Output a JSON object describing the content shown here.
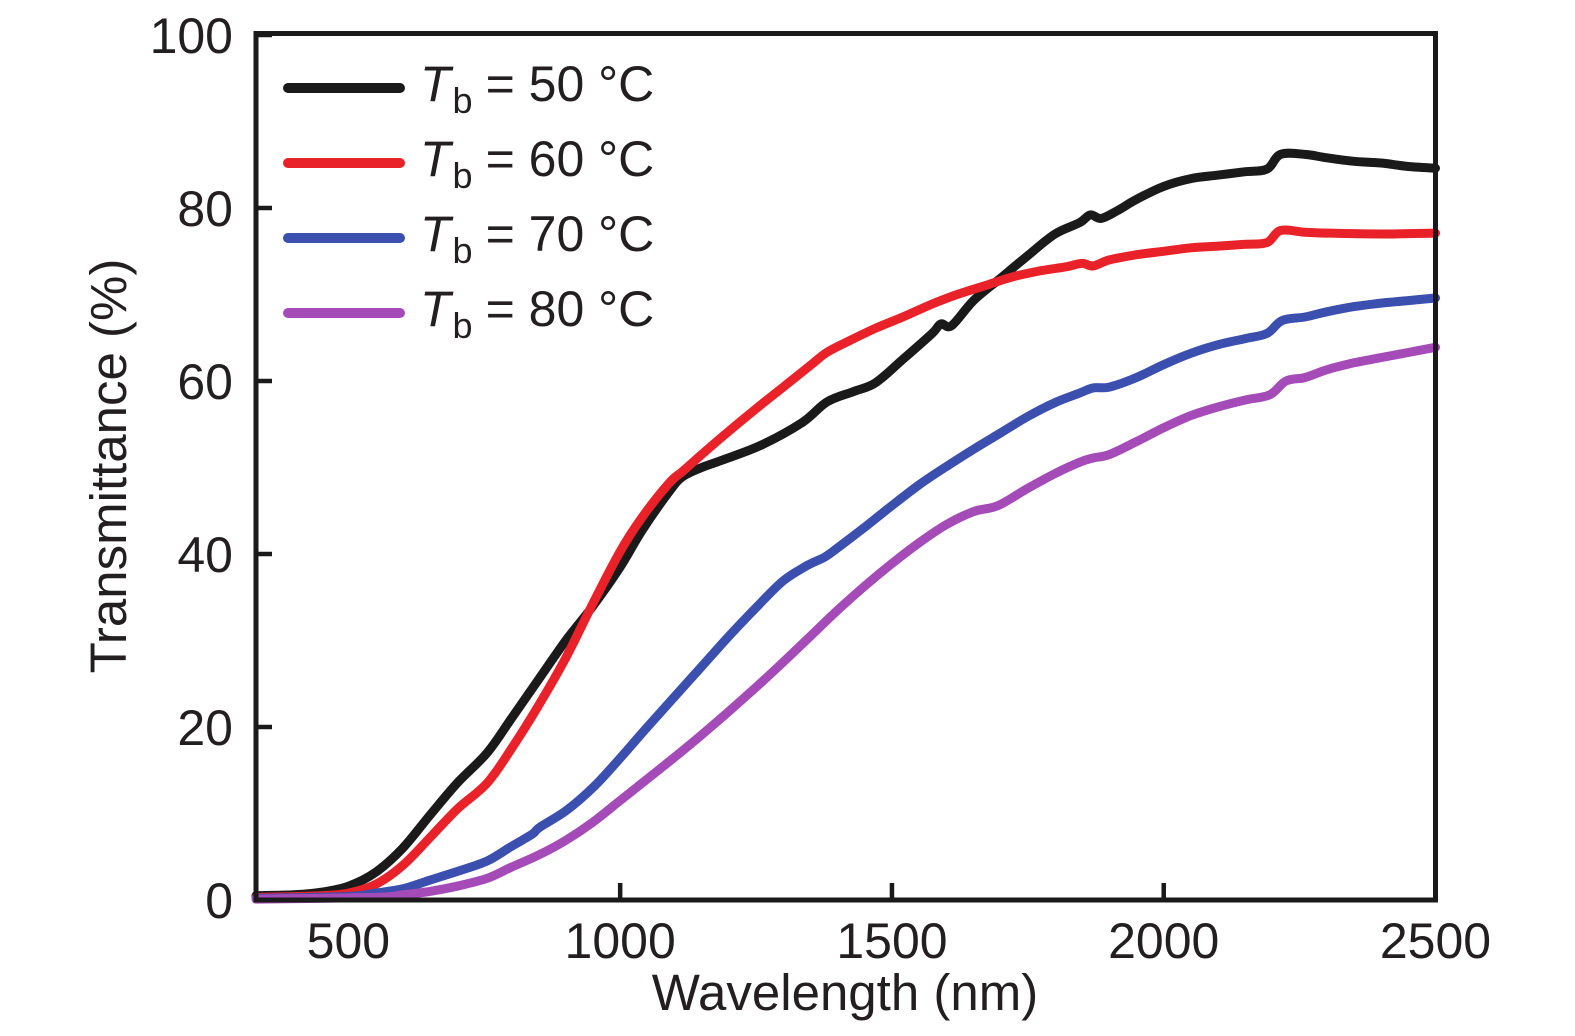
{
  "figure": {
    "background": "#ffffff",
    "text_color": "#231f20",
    "frame_color": "#1a1a1a"
  },
  "chart_data": {
    "type": "line",
    "title": "",
    "xlabel": "Wavelength (nm)",
    "ylabel": "Transmittance (%)",
    "xlim": [
      330,
      2500
    ],
    "ylim": [
      0,
      100
    ],
    "x_ticks": [
      500,
      1000,
      1500,
      2000,
      2500
    ],
    "y_ticks": [
      0,
      20,
      40,
      60,
      80,
      100
    ],
    "grid": false,
    "legend_position": "upper-left-inside",
    "series": [
      {
        "id": "tb50",
        "name": "Tb = 50 °C",
        "color": "#1a1a1a",
        "points": [
          [
            330,
            0.5
          ],
          [
            400,
            0.6
          ],
          [
            450,
            0.9
          ],
          [
            500,
            1.6
          ],
          [
            550,
            3.2
          ],
          [
            600,
            6
          ],
          [
            650,
            9.8
          ],
          [
            700,
            13.5
          ],
          [
            755,
            17
          ],
          [
            800,
            21
          ],
          [
            850,
            25.5
          ],
          [
            900,
            30
          ],
          [
            950,
            34
          ],
          [
            1000,
            38.5
          ],
          [
            1041,
            42.8
          ],
          [
            1090,
            47.2
          ],
          [
            1114,
            48.9
          ],
          [
            1150,
            50
          ],
          [
            1190,
            50.9
          ],
          [
            1260,
            52.6
          ],
          [
            1335,
            55.2
          ],
          [
            1381,
            57.6
          ],
          [
            1430,
            58.8
          ],
          [
            1470,
            59.8
          ],
          [
            1520,
            62.5
          ],
          [
            1574,
            65.5
          ],
          [
            1590,
            66.6
          ],
          [
            1610,
            66.4
          ],
          [
            1650,
            69.3
          ],
          [
            1700,
            71.9
          ],
          [
            1750,
            74.5
          ],
          [
            1800,
            77
          ],
          [
            1845,
            78.3
          ],
          [
            1865,
            79.2
          ],
          [
            1885,
            78.8
          ],
          [
            1915,
            79.7
          ],
          [
            1950,
            81
          ],
          [
            2000,
            82.5
          ],
          [
            2050,
            83.4
          ],
          [
            2100,
            83.8
          ],
          [
            2150,
            84.2
          ],
          [
            2190,
            84.5
          ],
          [
            2215,
            86.2
          ],
          [
            2260,
            86.2
          ],
          [
            2300,
            85.8
          ],
          [
            2350,
            85.4
          ],
          [
            2400,
            85.2
          ],
          [
            2450,
            84.8
          ],
          [
            2500,
            84.6
          ]
        ]
      },
      {
        "id": "tb60",
        "name": "Tb = 60 °C",
        "color": "#e92128",
        "points": [
          [
            330,
            0.3
          ],
          [
            450,
            0.5
          ],
          [
            500,
            0.8
          ],
          [
            550,
            1.8
          ],
          [
            600,
            4
          ],
          [
            650,
            7.2
          ],
          [
            700,
            10.5
          ],
          [
            755,
            13.5
          ],
          [
            800,
            17.5
          ],
          [
            850,
            22.5
          ],
          [
            900,
            28
          ],
          [
            950,
            34.3
          ],
          [
            1000,
            40.3
          ],
          [
            1041,
            44.3
          ],
          [
            1090,
            48.2
          ],
          [
            1114,
            49.5
          ],
          [
            1150,
            51.5
          ],
          [
            1200,
            54.2
          ],
          [
            1250,
            56.8
          ],
          [
            1300,
            59.3
          ],
          [
            1350,
            61.8
          ],
          [
            1380,
            63.3
          ],
          [
            1420,
            64.6
          ],
          [
            1470,
            66.1
          ],
          [
            1520,
            67.4
          ],
          [
            1574,
            68.9
          ],
          [
            1620,
            70
          ],
          [
            1670,
            71
          ],
          [
            1720,
            72
          ],
          [
            1770,
            72.7
          ],
          [
            1820,
            73.2
          ],
          [
            1850,
            73.6
          ],
          [
            1870,
            73.3
          ],
          [
            1900,
            74
          ],
          [
            1950,
            74.6
          ],
          [
            2000,
            75
          ],
          [
            2050,
            75.4
          ],
          [
            2100,
            75.6
          ],
          [
            2150,
            75.8
          ],
          [
            2190,
            76
          ],
          [
            2215,
            77.4
          ],
          [
            2260,
            77.2
          ],
          [
            2300,
            77.1
          ],
          [
            2400,
            77
          ],
          [
            2500,
            77.1
          ]
        ]
      },
      {
        "id": "tb70",
        "name": "Tb = 70 °C",
        "color": "#3a4fae",
        "points": [
          [
            330,
            0.2
          ],
          [
            500,
            0.4
          ],
          [
            550,
            0.8
          ],
          [
            600,
            1.3
          ],
          [
            650,
            2.3
          ],
          [
            700,
            3.3
          ],
          [
            755,
            4.5
          ],
          [
            800,
            6.2
          ],
          [
            838,
            7.6
          ],
          [
            852,
            8.4
          ],
          [
            900,
            10.3
          ],
          [
            950,
            13
          ],
          [
            1000,
            16.4
          ],
          [
            1050,
            20
          ],
          [
            1100,
            23.5
          ],
          [
            1150,
            27
          ],
          [
            1200,
            30.5
          ],
          [
            1250,
            33.8
          ],
          [
            1300,
            36.9
          ],
          [
            1345,
            38.7
          ],
          [
            1375,
            39.6
          ],
          [
            1400,
            40.7
          ],
          [
            1450,
            43.1
          ],
          [
            1500,
            45.6
          ],
          [
            1550,
            48
          ],
          [
            1600,
            50.1
          ],
          [
            1650,
            52.1
          ],
          [
            1700,
            54
          ],
          [
            1750,
            55.9
          ],
          [
            1800,
            57.5
          ],
          [
            1845,
            58.6
          ],
          [
            1870,
            59.2
          ],
          [
            1900,
            59.3
          ],
          [
            1950,
            60.4
          ],
          [
            2000,
            61.9
          ],
          [
            2050,
            63.2
          ],
          [
            2100,
            64.2
          ],
          [
            2150,
            64.9
          ],
          [
            2190,
            65.5
          ],
          [
            2218,
            67
          ],
          [
            2260,
            67.4
          ],
          [
            2300,
            68
          ],
          [
            2350,
            68.6
          ],
          [
            2400,
            69
          ],
          [
            2450,
            69.3
          ],
          [
            2500,
            69.6
          ]
        ]
      },
      {
        "id": "tb80",
        "name": "Tb = 80 °C",
        "color": "#a44bb8",
        "points": [
          [
            330,
            0.1
          ],
          [
            550,
            0.3
          ],
          [
            600,
            0.6
          ],
          [
            650,
            1
          ],
          [
            700,
            1.6
          ],
          [
            755,
            2.5
          ],
          [
            800,
            3.8
          ],
          [
            850,
            5.2
          ],
          [
            900,
            6.9
          ],
          [
            950,
            9
          ],
          [
            1000,
            11.5
          ],
          [
            1050,
            14
          ],
          [
            1100,
            16.5
          ],
          [
            1150,
            19.1
          ],
          [
            1200,
            21.8
          ],
          [
            1250,
            24.6
          ],
          [
            1300,
            27.5
          ],
          [
            1350,
            30.5
          ],
          [
            1400,
            33.5
          ],
          [
            1450,
            36.3
          ],
          [
            1500,
            38.9
          ],
          [
            1550,
            41.3
          ],
          [
            1600,
            43.4
          ],
          [
            1650,
            44.9
          ],
          [
            1695,
            45.6
          ],
          [
            1750,
            47.6
          ],
          [
            1800,
            49.3
          ],
          [
            1845,
            50.6
          ],
          [
            1870,
            51.1
          ],
          [
            1900,
            51.5
          ],
          [
            1950,
            53
          ],
          [
            2000,
            54.6
          ],
          [
            2050,
            56
          ],
          [
            2100,
            57
          ],
          [
            2150,
            57.8
          ],
          [
            2195,
            58.4
          ],
          [
            2225,
            60
          ],
          [
            2260,
            60.4
          ],
          [
            2300,
            61.3
          ],
          [
            2350,
            62.1
          ],
          [
            2400,
            62.7
          ],
          [
            2450,
            63.3
          ],
          [
            2500,
            63.9
          ]
        ]
      }
    ]
  },
  "legend": {
    "items": [
      {
        "prefix": "T",
        "sub": "b",
        "rest": "= 50 °C",
        "color": "#1a1a1a"
      },
      {
        "prefix": "T",
        "sub": "b",
        "rest": "= 60 °C",
        "color": "#e92128"
      },
      {
        "prefix": "T",
        "sub": "b",
        "rest": "= 70 °C",
        "color": "#3a4fae"
      },
      {
        "prefix": "T",
        "sub": "b",
        "rest": "= 80 °C",
        "color": "#a44bb8"
      }
    ]
  }
}
